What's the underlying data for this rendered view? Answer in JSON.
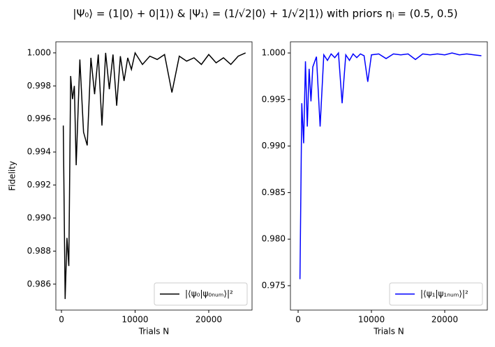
{
  "title": "|Ψ₀⟩ = (1|0⟩ + 0|1⟩) & |Ψ₁⟩ = (1/√2|0⟩ + 1/√2|1⟩) with priors ηᵢ = (0.5, 0.5)",
  "chart_data": [
    {
      "type": "line",
      "xlabel": "Trials N",
      "ylabel": "Fidelity",
      "x": [
        250,
        500,
        750,
        1000,
        1250,
        1500,
        1750,
        2000,
        2500,
        3000,
        3500,
        4000,
        4500,
        5000,
        5500,
        6000,
        6500,
        7000,
        7500,
        8000,
        8500,
        9000,
        9500,
        10000,
        11000,
        12000,
        13000,
        14000,
        15000,
        16000,
        17000,
        18000,
        19000,
        20000,
        21000,
        22000,
        23000,
        24000,
        25000
      ],
      "series": [
        {
          "name": "|⟨ψ₀|ψ₀ₙᵤₘ⟩|²",
          "color": "#000000",
          "values": [
            0.9956,
            0.9851,
            0.9888,
            0.9871,
            0.9986,
            0.9972,
            0.998,
            0.9932,
            0.9996,
            0.9952,
            0.9944,
            0.9997,
            0.9975,
            0.9999,
            0.9956,
            1.0,
            0.9978,
            0.9999,
            0.9968,
            0.9998,
            0.9983,
            0.9997,
            0.999,
            1.0,
            0.9993,
            0.9998,
            0.9996,
            0.9999,
            0.9976,
            0.9998,
            0.9995,
            0.9997,
            0.9993,
            0.9999,
            0.9994,
            0.9997,
            0.9993,
            0.9998,
            1.0
          ]
        }
      ],
      "xlim": [
        -760,
        25880
      ],
      "ylim": [
        0.98443,
        1.00067
      ],
      "xticks": [
        0,
        10000,
        20000
      ],
      "yticks": [
        0.986,
        0.988,
        {
          "value": 0.99,
          "label": "0.990"
        },
        0.992,
        0.994,
        0.996,
        0.998,
        {
          "value": 1.0,
          "label": "1.000"
        }
      ],
      "legend": "lower right"
    },
    {
      "type": "line",
      "xlabel": "Trials N",
      "x": [
        250,
        500,
        750,
        1000,
        1250,
        1500,
        1750,
        2000,
        2500,
        3000,
        3500,
        4000,
        4500,
        5000,
        5500,
        6000,
        6500,
        7000,
        7500,
        8000,
        8500,
        9000,
        9500,
        10000,
        11000,
        12000,
        13000,
        14000,
        15000,
        16000,
        17000,
        18000,
        19000,
        20000,
        21000,
        22000,
        23000,
        24000,
        25000
      ],
      "series": [
        {
          "name": "|⟨ψ₁|ψ₁ₙᵤₘ⟩|²",
          "color": "#0000ff",
          "values": [
            0.9757,
            0.9946,
            0.9903,
            0.9991,
            0.9921,
            0.9983,
            0.9948,
            0.9985,
            0.9996,
            0.9921,
            0.9998,
            0.9992,
            0.9999,
            0.9995,
            1.0,
            0.9946,
            0.9998,
            0.9992,
            0.9999,
            0.9995,
            0.9999,
            0.9997,
            0.9969,
            0.9998,
            0.9999,
            0.9994,
            0.9999,
            0.9998,
            0.9999,
            0.9993,
            0.9999,
            0.9998,
            0.9999,
            0.9998,
            1.0,
            0.9998,
            0.9999,
            0.9998,
            0.9997
          ]
        }
      ],
      "xlim": [
        -1050,
        25810
      ],
      "ylim": [
        0.97238,
        1.0012
      ],
      "xticks": [
        0,
        10000,
        20000
      ],
      "yticks": [
        0.975,
        {
          "value": 0.98,
          "label": "0.980"
        },
        0.985,
        {
          "value": 0.99,
          "label": "0.990"
        },
        0.995,
        {
          "value": 1.0,
          "label": "1.000"
        }
      ],
      "legend": "lower right"
    }
  ]
}
